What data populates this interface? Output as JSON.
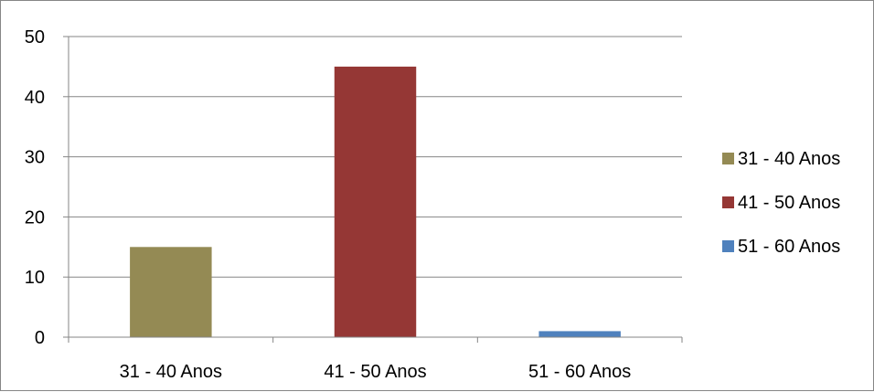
{
  "chart_data": {
    "type": "bar",
    "categories": [
      "31 - 40 Anos",
      "41 - 50 Anos",
      "51 - 60 Anos"
    ],
    "series": [
      {
        "name": "31 - 40 Anos",
        "color": "#948A54"
      },
      {
        "name": "41 - 50 Anos",
        "color": "#953735"
      },
      {
        "name": "51 - 60 Anos",
        "color": "#4F81BD"
      }
    ],
    "values": [
      15,
      45,
      1
    ],
    "title": "",
    "xlabel": "",
    "ylabel": "",
    "ylim": [
      0,
      50
    ],
    "yticks": [
      0,
      10,
      20,
      30,
      40,
      50
    ],
    "grid": true,
    "legend_position": "right"
  }
}
